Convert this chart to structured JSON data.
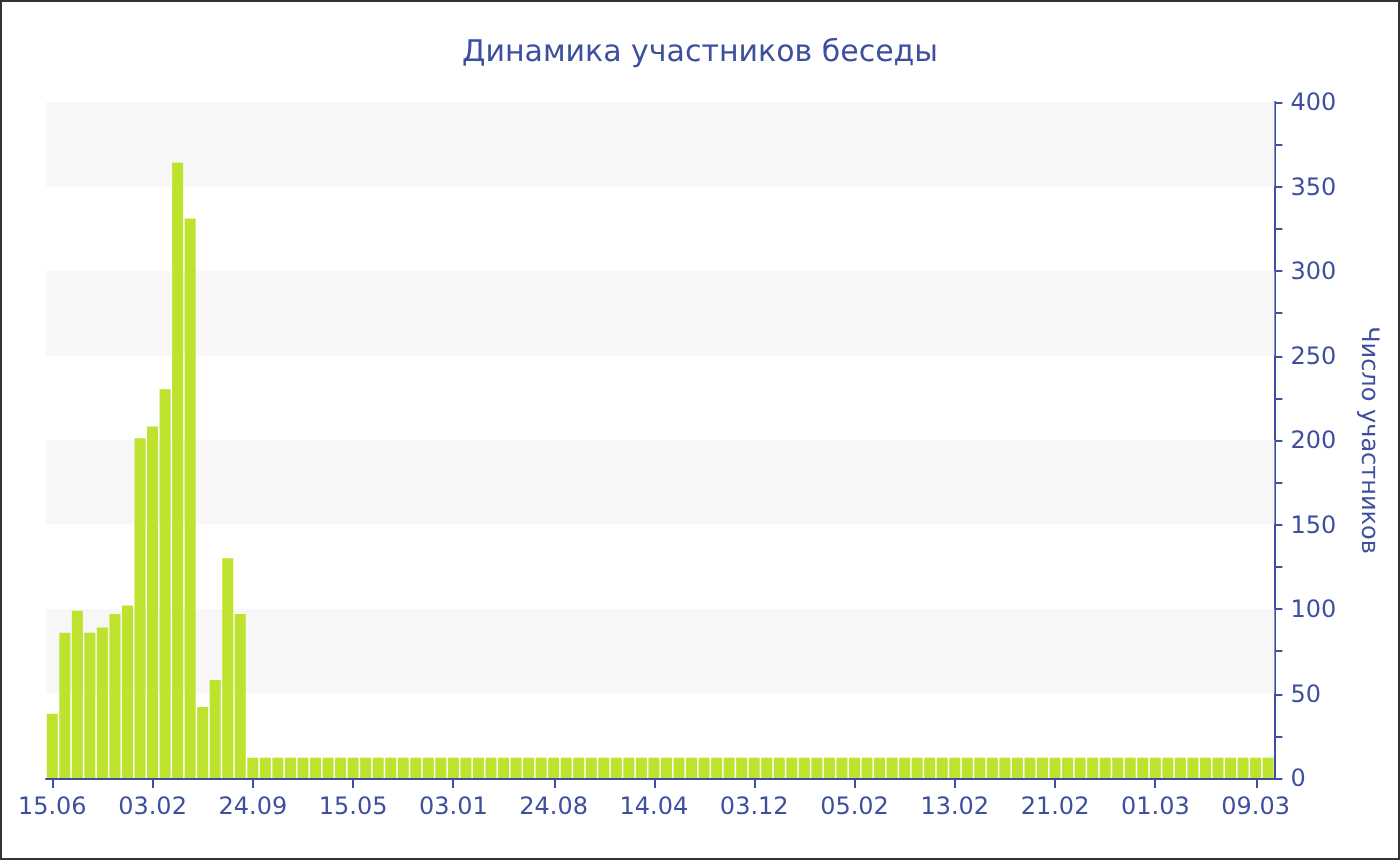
{
  "chart_data": {
    "type": "bar",
    "title": "Динамика участников беседы",
    "ylabel": "Число участников",
    "categories": [
      "15.06",
      null,
      null,
      null,
      null,
      null,
      null,
      null,
      "03.02",
      null,
      null,
      null,
      null,
      null,
      null,
      null,
      "24.09",
      null,
      null,
      null,
      null,
      null,
      null,
      null,
      "15.05",
      null,
      null,
      null,
      null,
      null,
      null,
      null,
      "03.01",
      null,
      null,
      null,
      null,
      null,
      null,
      null,
      "24.08",
      null,
      null,
      null,
      null,
      null,
      null,
      null,
      "14.04",
      null,
      null,
      null,
      null,
      null,
      null,
      null,
      "03.12",
      null,
      null,
      null,
      null,
      null,
      null,
      null,
      "05.02",
      null,
      null,
      null,
      null,
      null,
      null,
      null,
      "13.02",
      null,
      null,
      null,
      null,
      null,
      null,
      null,
      "21.02",
      null,
      null,
      null,
      null,
      null,
      null,
      null,
      "01.03",
      null,
      null,
      null,
      null,
      null,
      null,
      null,
      "09.03",
      null
    ],
    "values": [
      38,
      86,
      99,
      86,
      89,
      97,
      102,
      201,
      208,
      230,
      364,
      331,
      42,
      58,
      130,
      97,
      12,
      12,
      12,
      12,
      12,
      12,
      12,
      12,
      12,
      12,
      12,
      12,
      12,
      12,
      12,
      12,
      12,
      12,
      12,
      12,
      12,
      12,
      12,
      12,
      12,
      12,
      12,
      12,
      12,
      12,
      12,
      12,
      12,
      12,
      12,
      12,
      12,
      12,
      12,
      12,
      12,
      12,
      12,
      12,
      12,
      12,
      12,
      12,
      12,
      12,
      12,
      12,
      12,
      12,
      12,
      12,
      12,
      12,
      12,
      12,
      12,
      12,
      12,
      12,
      12,
      12,
      12,
      12,
      12,
      12,
      12,
      12,
      12,
      12,
      12,
      12,
      12,
      12,
      12,
      12,
      12,
      12
    ],
    "color": "#bde32e",
    "ylim": [
      0,
      400
    ],
    "yticks": [
      0,
      50,
      100,
      150,
      200,
      250,
      300,
      350,
      400
    ],
    "bands": [
      {
        "axis": "y",
        "from": 50,
        "to": 100,
        "color": "#f7f7f7"
      },
      {
        "axis": "y",
        "from": 150,
        "to": 200,
        "color": "#f7f7f7"
      },
      {
        "axis": "y",
        "from": 250,
        "to": 300,
        "color": "#f7f7f7"
      },
      {
        "axis": "y",
        "from": 350,
        "to": 400,
        "color": "#f7f7f7"
      }
    ]
  }
}
